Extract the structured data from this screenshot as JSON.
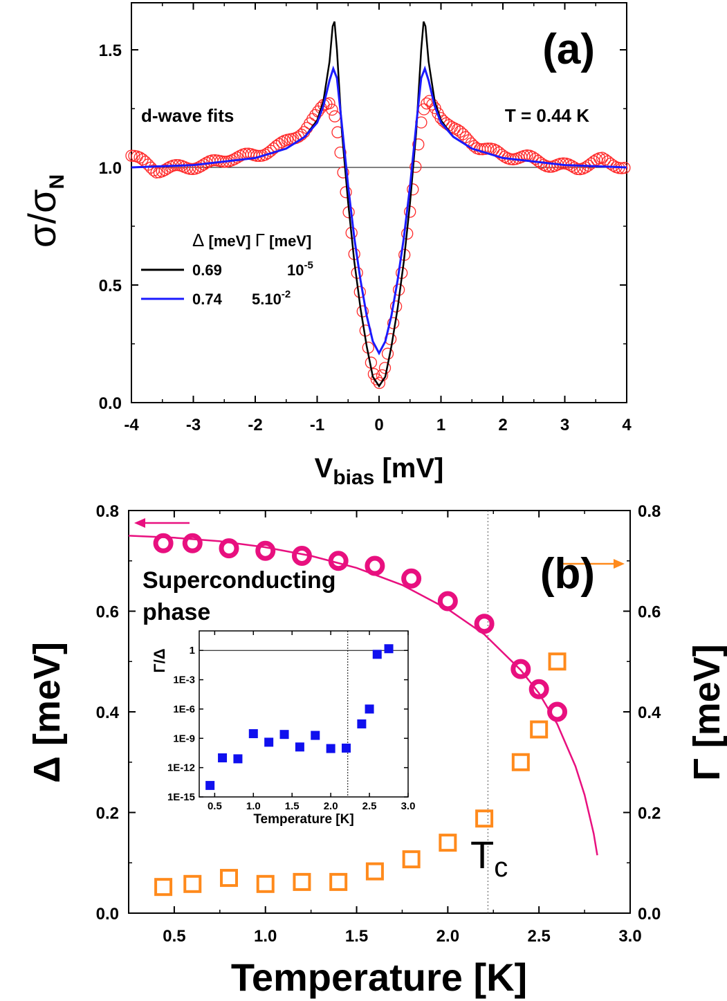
{
  "colors": {
    "data_circles": "#ff2a2a",
    "fit_black": "#000000",
    "fit_blue": "#1a1aff",
    "gap_magenta": "#e8107f",
    "gamma_orange": "#ff8a1c",
    "inset_blue": "#1010ee"
  },
  "chart_data": [
    {
      "type": "line",
      "panel_label": "(a)",
      "xlabel_main": "V",
      "xlabel_sub": "bias",
      "xlabel_unit": " [mV]",
      "ylabel_main": "σ/σ",
      "ylabel_sub": "N",
      "xlim": [
        -4,
        4
      ],
      "ylim": [
        0,
        1.65
      ],
      "xticks": [
        -4,
        -3,
        -2,
        -1,
        0,
        1,
        2,
        3,
        4
      ],
      "yticks": [
        0.0,
        0.5,
        1.0,
        1.5
      ],
      "ytick_labels": [
        "0.0",
        "0.5",
        "1.0",
        "1.5"
      ],
      "reference_line_y": 1.0,
      "annotations": {
        "left": "d-wave fits",
        "right": "T = 0.44 K",
        "legend_header_delta": "Δ",
        "legend_header_unit1": "[meV]",
        "legend_header_gamma": "Γ",
        "legend_header_unit2": "[meV]"
      },
      "series": [
        {
          "marker": "open-circle",
          "x": [
            -4.0,
            -3.6,
            -3.2,
            -2.8,
            -2.4,
            -2.0,
            -1.6,
            -1.2,
            -1.0,
            -0.9,
            -0.8,
            -0.7,
            -0.6,
            -0.5,
            -0.4,
            -0.3,
            -0.2,
            -0.1,
            0.0,
            0.1,
            0.2,
            0.3,
            0.4,
            0.5,
            0.6,
            0.7,
            0.8,
            0.9,
            1.0,
            1.2,
            1.6,
            2.0,
            2.4,
            2.8,
            3.2,
            3.6,
            4.0
          ],
          "y": [
            1.05,
            0.99,
            1.0,
            1.01,
            1.04,
            1.05,
            1.09,
            1.16,
            1.22,
            1.26,
            1.28,
            1.22,
            1.02,
            0.82,
            0.62,
            0.45,
            0.28,
            0.14,
            0.08,
            0.14,
            0.28,
            0.45,
            0.62,
            0.82,
            1.02,
            1.22,
            1.28,
            1.26,
            1.22,
            1.16,
            1.09,
            1.05,
            1.04,
            1.01,
            1.0,
            1.03,
            1.0
          ]
        },
        {
          "name": "0.69",
          "gamma": "10",
          "gamma_exp": "-5",
          "x": [
            -4.0,
            -3.0,
            -2.0,
            -1.5,
            -1.2,
            -1.0,
            -0.9,
            -0.8,
            -0.75,
            -0.72,
            -0.68,
            -0.6,
            -0.5,
            -0.4,
            -0.3,
            -0.2,
            -0.1,
            0.0,
            0.1,
            0.2,
            0.3,
            0.4,
            0.5,
            0.6,
            0.68,
            0.72,
            0.75,
            0.8,
            0.9,
            1.0,
            1.2,
            1.5,
            2.0,
            3.0,
            4.0
          ],
          "y": [
            1.0,
            1.01,
            1.04,
            1.08,
            1.13,
            1.2,
            1.28,
            1.45,
            1.6,
            1.62,
            1.5,
            1.15,
            0.85,
            0.6,
            0.4,
            0.24,
            0.11,
            0.07,
            0.11,
            0.24,
            0.4,
            0.6,
            0.85,
            1.15,
            1.5,
            1.62,
            1.6,
            1.45,
            1.28,
            1.2,
            1.13,
            1.08,
            1.04,
            1.01,
            1.0
          ]
        },
        {
          "name": "0.74",
          "gamma": "5.10",
          "gamma_exp": "-2",
          "x": [
            -4.0,
            -3.0,
            -2.0,
            -1.5,
            -1.2,
            -1.0,
            -0.9,
            -0.8,
            -0.74,
            -0.68,
            -0.6,
            -0.5,
            -0.4,
            -0.3,
            -0.2,
            -0.1,
            0.0,
            0.1,
            0.2,
            0.3,
            0.4,
            0.5,
            0.6,
            0.68,
            0.74,
            0.8,
            0.9,
            1.0,
            1.2,
            1.5,
            2.0,
            3.0,
            4.0
          ],
          "y": [
            1.0,
            1.01,
            1.04,
            1.08,
            1.13,
            1.19,
            1.26,
            1.37,
            1.42,
            1.38,
            1.18,
            0.92,
            0.7,
            0.52,
            0.37,
            0.26,
            0.21,
            0.26,
            0.37,
            0.52,
            0.7,
            0.92,
            1.18,
            1.38,
            1.42,
            1.37,
            1.26,
            1.19,
            1.13,
            1.08,
            1.04,
            1.01,
            1.0
          ]
        }
      ]
    },
    {
      "type": "scatter",
      "panel_label": "(b)",
      "xlabel": "Temperature [K]",
      "ylabel_left": "Δ [meV]",
      "ylabel_right": "Γ [meV]",
      "xlim": [
        0.25,
        3.0
      ],
      "ylim": [
        0,
        0.8
      ],
      "xticks": [
        0.5,
        1.0,
        1.5,
        2.0,
        2.5,
        3.0
      ],
      "xtick_labels": [
        "0.5",
        "1.0",
        "1.5",
        "2.0",
        "2.5",
        "3.0"
      ],
      "yticks": [
        0.0,
        0.2,
        0.4,
        0.6,
        0.8
      ],
      "ytick_labels": [
        "0.0",
        "0.2",
        "0.4",
        "0.6",
        "0.8"
      ],
      "tc": 2.22,
      "tc_label_main": "T",
      "tc_label_sub": "c",
      "annotation": [
        "Superconducting",
        "phase"
      ],
      "series": [
        {
          "axis": "left",
          "marker": "open-circle",
          "x": [
            0.44,
            0.6,
            0.8,
            1.0,
            1.2,
            1.4,
            1.6,
            1.8,
            2.0,
            2.2,
            2.4,
            2.5,
            2.6
          ],
          "y": [
            0.735,
            0.735,
            0.725,
            0.72,
            0.71,
            0.7,
            0.69,
            0.665,
            0.62,
            0.575,
            0.485,
            0.445,
            0.4
          ]
        },
        {
          "axis": "left",
          "marker": "line",
          "x": [
            0.25,
            0.5,
            0.75,
            1.0,
            1.25,
            1.5,
            1.75,
            2.0,
            2.2,
            2.4,
            2.5,
            2.6,
            2.7,
            2.75,
            2.8,
            2.82
          ],
          "y": [
            0.75,
            0.746,
            0.739,
            0.727,
            0.71,
            0.686,
            0.652,
            0.604,
            0.554,
            0.483,
            0.437,
            0.376,
            0.292,
            0.235,
            0.158,
            0.115
          ]
        },
        {
          "axis": "right",
          "marker": "open-square",
          "x": [
            0.44,
            0.6,
            0.8,
            1.0,
            1.2,
            1.4,
            1.6,
            1.8,
            2.0,
            2.2,
            2.4,
            2.5,
            2.6
          ],
          "y": [
            0.052,
            0.058,
            0.07,
            0.058,
            0.062,
            0.062,
            0.083,
            0.107,
            0.14,
            0.188,
            0.3,
            0.365,
            0.5
          ]
        }
      ]
    },
    {
      "type": "scatter",
      "scale_y": "log",
      "xlabel": "Temperature [K]",
      "ylabel": "Γ/Δ",
      "xlim": [
        0.3,
        3.0
      ],
      "xticks": [
        0.5,
        1.0,
        1.5,
        2.0,
        2.5,
        3.0
      ],
      "xtick_labels": [
        "0.5",
        "1.0",
        "1.5",
        "2.0",
        "2.5",
        "3.0"
      ],
      "ylim": [
        1e-15,
        100
      ],
      "yticks": [
        1e-15,
        1e-12,
        1e-09,
        1e-06,
        0.001,
        1
      ],
      "ytick_labels": [
        "1E-15",
        "1E-12",
        "1E-9",
        "1E-6",
        "1E-3",
        "1"
      ],
      "reference_line_y": 1,
      "tc": 2.22,
      "series": [
        {
          "marker": "filled-square",
          "x": [
            0.44,
            0.6,
            0.8,
            1.0,
            1.2,
            1.4,
            1.6,
            1.8,
            2.0,
            2.2,
            2.4,
            2.5,
            2.6,
            2.75
          ],
          "y": [
            1.5e-14,
            1e-11,
            8e-12,
            3e-09,
            4e-10,
            2.5e-09,
            1.3e-10,
            2e-09,
            9e-11,
            1e-10,
            3e-08,
            1e-06,
            0.4,
            1.5
          ]
        }
      ]
    }
  ]
}
